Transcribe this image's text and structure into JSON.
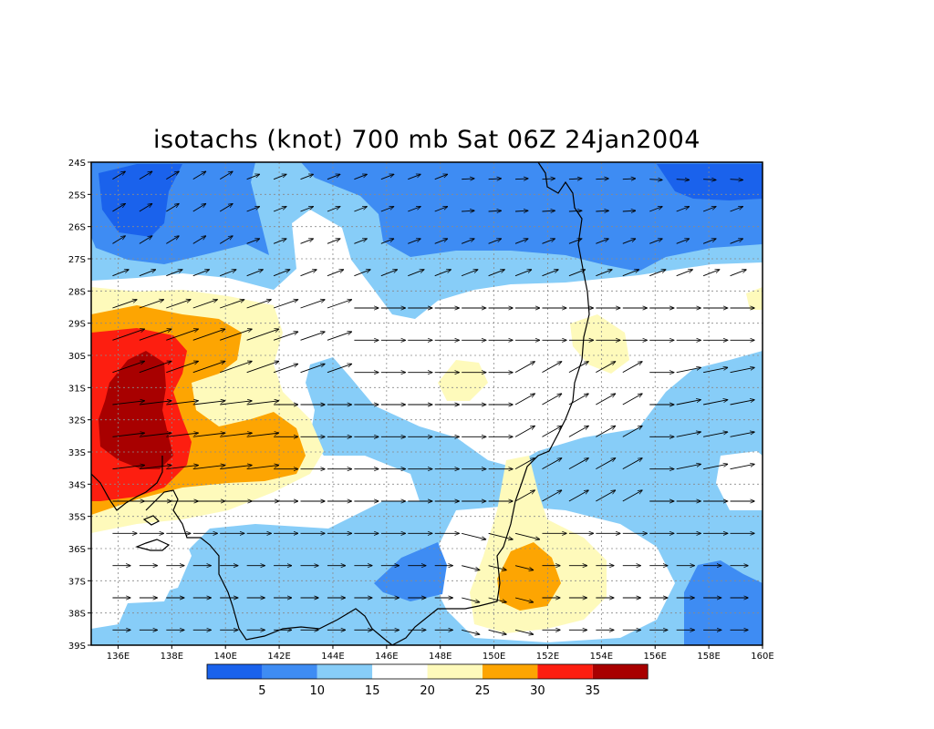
{
  "title": "isotachs (knot) 700 mb Sat 06Z 24jan2004",
  "map": {
    "lat_labels": [
      "24S",
      "25S",
      "26S",
      "27S",
      "28S",
      "29S",
      "30S",
      "31S",
      "32S",
      "33S",
      "34S",
      "35S",
      "36S",
      "37S",
      "38S",
      "39S"
    ],
    "lon_labels": [
      "136E",
      "138E",
      "140E",
      "142E",
      "144E",
      "146E",
      "148E",
      "150E",
      "152E",
      "154E",
      "156E",
      "158E",
      "160E"
    ],
    "lon_range": [
      135,
      160
    ],
    "lat_range": [
      -39,
      -24
    ]
  },
  "colorbar": {
    "colors": [
      "#1a62ec",
      "#3e8cf3",
      "#87cdf8",
      "#ffffff",
      "#fefabb",
      "#fda502",
      "#fd1e10",
      "#a80000"
    ],
    "labels": [
      "5",
      "10",
      "15",
      "20",
      "25",
      "30",
      "35"
    ]
  },
  "palette": {
    "c5": "#1a62ec",
    "c10": "#3e8cf3",
    "c15": "#87cdf8",
    "c20": "#ffffff",
    "c25": "#fefabb",
    "c30": "#fda502",
    "c35": "#fd1e10",
    "c40": "#a80000"
  }
}
